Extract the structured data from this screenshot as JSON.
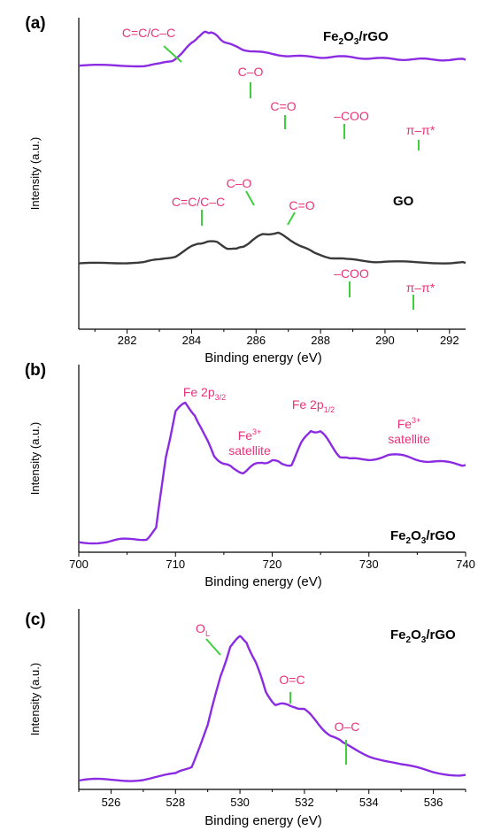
{
  "chart_data": [
    {
      "panel": "(a)",
      "type": "line",
      "xlabel": "Binding energy (eV)",
      "ylabel": "Intensity (a.u.)",
      "xlim": [
        280.5,
        292.5
      ],
      "xticks": [
        282,
        284,
        286,
        288,
        290,
        292
      ],
      "ylim": [
        0,
        1.0
      ],
      "colors": {
        "Fe2O3/rGO": "#8b2be2",
        "GO": "#3a3a3a",
        "annotation": "#e8337a",
        "marker": "#3ecf3e"
      },
      "series": [
        {
          "name": "Fe2O3/rGO",
          "label_parts": [
            "Fe",
            "2",
            "O",
            "3",
            "/rGO"
          ],
          "x": [
            280.5,
            281.5,
            282.5,
            283.0,
            283.4,
            283.7,
            284.0,
            284.2,
            284.4,
            284.5,
            284.6,
            284.8,
            285.0,
            285.3,
            285.6,
            286.0,
            286.5,
            287.0,
            287.5,
            288.0,
            288.5,
            289.0,
            289.5,
            290.0,
            290.5,
            291.0,
            291.5,
            292.0,
            292.5
          ],
          "y": [
            0.51,
            0.51,
            0.512,
            0.53,
            0.58,
            0.68,
            0.82,
            0.91,
            0.965,
            0.975,
            0.965,
            0.915,
            0.845,
            0.78,
            0.735,
            0.7,
            0.67,
            0.648,
            0.632,
            0.628,
            0.632,
            0.625,
            0.612,
            0.605,
            0.6,
            0.597,
            0.595,
            0.593,
            0.592
          ],
          "annotations": [
            {
              "text": "C=C/C–C",
              "x": 284.6
            },
            {
              "text": "C–O",
              "x": 286.0
            },
            {
              "text": "C=O",
              "x": 287.0
            },
            {
              "text": "–COO",
              "x": 288.8
            },
            {
              "text": "π–π*",
              "x": 291.0
            }
          ]
        },
        {
          "name": "GO",
          "x": [
            280.5,
            281.5,
            282.5,
            283.0,
            283.5,
            283.9,
            284.2,
            284.5,
            284.8,
            285.1,
            285.4,
            285.6,
            285.9,
            286.2,
            286.5,
            286.7,
            287.0,
            287.4,
            287.8,
            288.3,
            288.8,
            289.5,
            290.0,
            291.0,
            292.0,
            292.5
          ],
          "y": [
            0.02,
            0.035,
            0.05,
            0.075,
            0.13,
            0.23,
            0.3,
            0.33,
            0.31,
            0.24,
            0.22,
            0.26,
            0.35,
            0.42,
            0.44,
            0.435,
            0.37,
            0.26,
            0.17,
            0.11,
            0.08,
            0.06,
            0.05,
            0.04,
            0.04,
            0.035
          ],
          "annotations": [
            {
              "text": "C=C/C–C",
              "x": 284.5
            },
            {
              "text": "C–O",
              "x": 286.1
            },
            {
              "text": "C=O",
              "x": 287.0
            },
            {
              "text": "–COO",
              "x": 288.9
            },
            {
              "text": "π–π*",
              "x": 291.0
            }
          ]
        }
      ]
    },
    {
      "panel": "(b)",
      "type": "line",
      "xlabel": "Binding energy (eV)",
      "ylabel": "Intensity (a.u.)",
      "xlim": [
        700,
        740
      ],
      "xticks": [
        700,
        710,
        720,
        730,
        740
      ],
      "ylim": [
        0,
        1.0
      ],
      "colors": {
        "line": "#8b2be2",
        "annotation": "#e8337a"
      },
      "series": [
        {
          "name": "Fe2O3/rGO",
          "label_parts": [
            "Fe",
            "2",
            "O",
            "3",
            "/rGO"
          ],
          "x": [
            700,
            703,
            705,
            707,
            708,
            709,
            710,
            711,
            712,
            713,
            714,
            715,
            716,
            717,
            718,
            719,
            720,
            721,
            722,
            723,
            724,
            725,
            726,
            727,
            728,
            730,
            732,
            734,
            736,
            738,
            740
          ],
          "y": [
            0.02,
            0.025,
            0.03,
            0.045,
            0.1,
            0.55,
            0.84,
            0.88,
            0.82,
            0.68,
            0.56,
            0.51,
            0.47,
            0.46,
            0.49,
            0.52,
            0.53,
            0.5,
            0.51,
            0.63,
            0.72,
            0.71,
            0.63,
            0.56,
            0.53,
            0.54,
            0.56,
            0.55,
            0.53,
            0.51,
            0.5
          ],
          "annotations": [
            {
              "text": "Fe 2p",
              "sub": "3/2",
              "x": 711
            },
            {
              "text": "Fe",
              "sup": "3+",
              "line2": "satellite",
              "x": 719
            },
            {
              "text": "Fe 2p",
              "sub": "1/2",
              "x": 724.5
            },
            {
              "text": "Fe",
              "sup": "3+",
              "line2": "satellite",
              "x": 733
            }
          ]
        }
      ]
    },
    {
      "panel": "(c)",
      "type": "line",
      "xlabel": "Binding energy (eV)",
      "ylabel": "Intensity (a.u.)",
      "xlim": [
        525,
        537
      ],
      "xticks": [
        526,
        528,
        530,
        532,
        534,
        536
      ],
      "ylim": [
        0,
        1.0
      ],
      "colors": {
        "line": "#8b2be2",
        "annotation": "#e8337a",
        "marker": "#3ecf3e"
      },
      "series": [
        {
          "name": "Fe2O3/rGO",
          "label_parts": [
            "Fe",
            "2",
            "O",
            "3",
            "/rGO"
          ],
          "x": [
            525,
            526,
            527,
            528,
            528.5,
            529.0,
            529.4,
            529.7,
            530.0,
            530.2,
            530.5,
            530.8,
            531.1,
            531.4,
            531.7,
            532.0,
            532.4,
            532.8,
            533.2,
            534.0,
            535.0,
            536.0,
            537.0
          ],
          "y": [
            0.02,
            0.025,
            0.035,
            0.06,
            0.12,
            0.38,
            0.7,
            0.9,
            0.95,
            0.93,
            0.78,
            0.6,
            0.52,
            0.51,
            0.51,
            0.48,
            0.4,
            0.32,
            0.26,
            0.19,
            0.12,
            0.08,
            0.06
          ],
          "annotations": [
            {
              "text": "O",
              "sub": "L",
              "x": 529.8
            },
            {
              "text": "O=C",
              "x": 531.7
            },
            {
              "text": "O–C",
              "x": 533.3
            }
          ]
        }
      ]
    }
  ]
}
